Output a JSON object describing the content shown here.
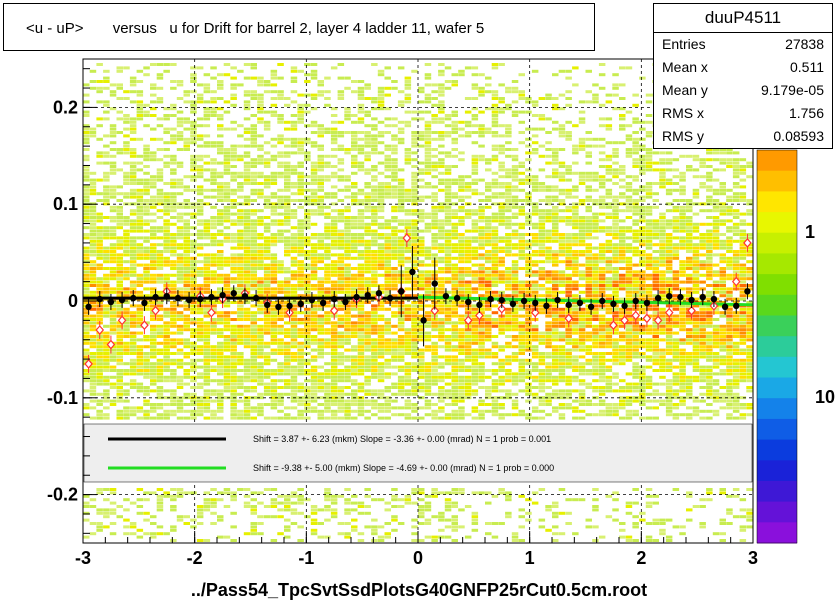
{
  "title": "<u - uP>       versus   u for Drift for barrel 2, layer 4 ladder 11, wafer 5",
  "x_axis_title": "../Pass54_TpcSvtSsdPlotsG40GNFP25rCut0.5cm.root",
  "stats": {
    "name": "duuP4511",
    "rows": [
      {
        "key": "Entries",
        "value": "27838"
      },
      {
        "key": "Mean x",
        "value": "0.511"
      },
      {
        "key": "Mean y",
        "value": "9.179e-05"
      },
      {
        "key": "RMS x",
        "value": "1.756"
      },
      {
        "key": "RMS y",
        "value": "0.08593"
      }
    ]
  },
  "legend": [
    {
      "color": "#000000",
      "text": "Shift =    3.87 +- 6.23 (mkm) Slope =    -3.36 +- 0.00 (mrad)  N = 1 prob = 0.001"
    },
    {
      "color": "#22dd22",
      "text": "Shift =    -9.38 +- 5.00 (mkm) Slope =    -4.69 +- 0.00 (mrad)  N = 1 prob = 0.000"
    }
  ],
  "colors": {
    "fit_black": "#000000",
    "fit_green": "#22dd22",
    "profile_open": "#ff3333",
    "legend_bg": "#eeeeee"
  },
  "chart_data": {
    "type": "heatmap",
    "xlim": [
      -3,
      3
    ],
    "ylim": [
      -0.25,
      0.25
    ],
    "x_ticks": [
      -3,
      -2,
      -1,
      0,
      1,
      2,
      3
    ],
    "y_ticks": [
      -0.2,
      -0.1,
      0,
      0.1,
      0.2
    ],
    "x_tick_labels": [
      "-3",
      "-2",
      "-1",
      "0",
      "1",
      "2",
      "3"
    ],
    "y_tick_labels": [
      "-0.2",
      "-0.1",
      "0",
      "0.1",
      "0.2"
    ],
    "colorbar_labels": [
      "1",
      "10"
    ],
    "colorbar_top_partial": "0",
    "grid": true,
    "series": [
      {
        "name": "profile_black",
        "x": [
          -2.95,
          -2.85,
          -2.75,
          -2.65,
          -2.55,
          -2.45,
          -2.35,
          -2.25,
          -2.15,
          -2.05,
          -1.95,
          -1.85,
          -1.75,
          -1.65,
          -1.55,
          -1.45,
          -1.35,
          -1.25,
          -1.15,
          -1.05,
          -0.95,
          -0.85,
          -0.75,
          -0.65,
          -0.55,
          -0.45,
          -0.35,
          -0.25,
          -0.15,
          -0.05,
          0.05,
          0.15,
          0.25,
          0.35,
          0.45,
          0.55,
          0.65,
          0.75,
          0.85,
          0.95,
          1.05,
          1.15,
          1.25,
          1.35,
          1.45,
          1.55,
          1.65,
          1.75,
          1.85,
          1.95,
          2.05,
          2.15,
          2.25,
          2.35,
          2.45,
          2.55,
          2.65,
          2.75,
          2.85,
          2.95
        ],
        "y": [
          -0.006,
          0.002,
          -0.001,
          0.001,
          0.003,
          -0.002,
          0.004,
          0.005,
          0.003,
          0.001,
          0.002,
          0.004,
          0.006,
          0.008,
          0.005,
          0.003,
          -0.004,
          -0.006,
          -0.005,
          -0.003,
          0.001,
          -0.002,
          0.002,
          -0.001,
          0.004,
          0.006,
          0.008,
          0.003,
          0.01,
          0.03,
          -0.02,
          0.018,
          0.005,
          0.003,
          -0.001,
          -0.004,
          0.002,
          0.001,
          -0.003,
          0.0,
          -0.002,
          -0.005,
          0.001,
          -0.004,
          -0.002,
          -0.006,
          0.0,
          -0.003,
          -0.005,
          0.0,
          -0.002,
          0.003,
          0.005,
          0.004,
          0.001,
          0.004,
          0.002,
          -0.006,
          -0.005,
          0.01
        ]
      },
      {
        "name": "profile_open",
        "x": [
          -2.95,
          -2.85,
          -2.75,
          -2.65,
          -2.45,
          -2.35,
          -2.25,
          -1.95,
          -1.85,
          -1.75,
          -1.55,
          -1.35,
          -1.15,
          -0.75,
          -0.55,
          -0.35,
          -0.15,
          -0.1,
          0.15,
          0.45,
          0.55,
          0.75,
          1.05,
          1.35,
          1.75,
          1.85,
          1.95,
          2.05,
          2.15,
          2.25,
          2.45,
          2.65,
          2.85,
          2.95
        ],
        "y": [
          -0.065,
          -0.03,
          -0.045,
          -0.02,
          -0.025,
          -0.01,
          0.01,
          0.005,
          -0.012,
          0.002,
          0.008,
          -0.002,
          -0.012,
          -0.01,
          0.002,
          0.004,
          0.01,
          0.065,
          -0.01,
          -0.02,
          -0.015,
          -0.008,
          -0.012,
          -0.018,
          -0.025,
          -0.02,
          -0.015,
          -0.018,
          -0.02,
          -0.012,
          -0.01,
          -0.005,
          0.02,
          0.06
        ]
      },
      {
        "name": "fit_black",
        "x": [
          -3,
          0
        ],
        "y": [
          0.003,
          0.003
        ]
      },
      {
        "name": "fit_green",
        "x": [
          0,
          3
        ],
        "y": [
          0.004,
          -0.004
        ]
      }
    ]
  }
}
